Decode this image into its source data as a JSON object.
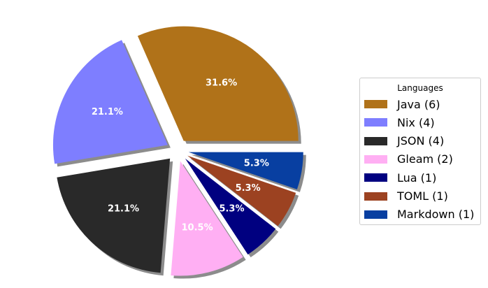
{
  "chart_data": {
    "type": "pie",
    "legend_title": "Languages",
    "legend_placement": "right",
    "slices": [
      {
        "label": "Java (6)",
        "value": 6,
        "percent_label": "31.6%",
        "color": "#b07219",
        "exploded": true
      },
      {
        "label": "Nix (4)",
        "value": 4,
        "percent_label": "21.1%",
        "color": "#7e7eff",
        "exploded": true
      },
      {
        "label": "JSON (4)",
        "value": 4,
        "percent_label": "21.1%",
        "color": "#292929",
        "exploded": true
      },
      {
        "label": "Gleam (2)",
        "value": 2,
        "percent_label": "10.5%",
        "color": "#ffaff3",
        "exploded": true
      },
      {
        "label": "Lua (1)",
        "value": 1,
        "percent_label": "5.3%",
        "color": "#000080",
        "exploded": true
      },
      {
        "label": "TOML (1)",
        "value": 1,
        "percent_label": "5.3%",
        "color": "#9c4221",
        "exploded": true
      },
      {
        "label": "Markdown (1)",
        "value": 1,
        "percent_label": "5.3%",
        "color": "#083fa1",
        "exploded": true
      }
    ],
    "start_angle_deg": 0,
    "direction": "counterclockwise",
    "shadow": true
  }
}
